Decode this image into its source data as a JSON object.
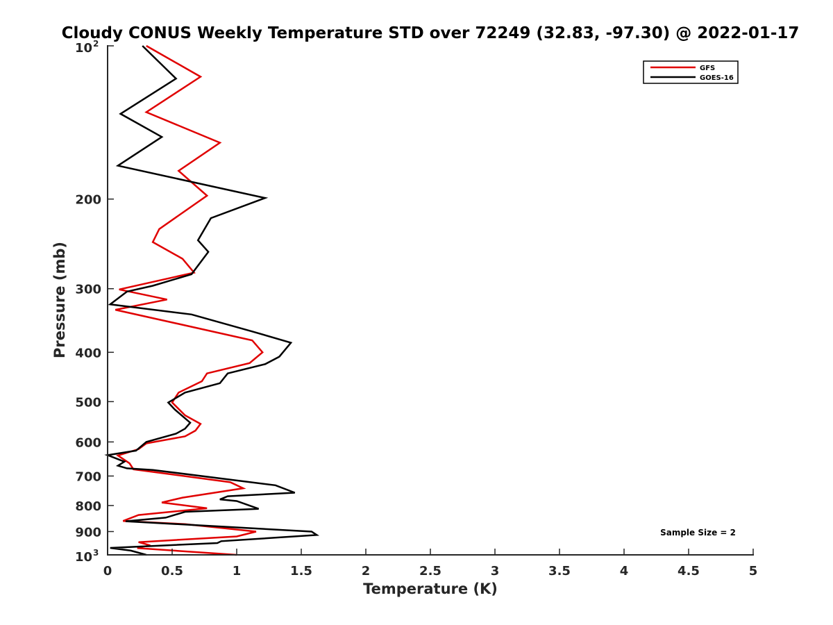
{
  "chart_data": {
    "type": "line",
    "title": "Cloudy CONUS Weekly Temperature STD over 72249 (32.83, -97.30) @ 2022-01-17",
    "xlabel": "Temperature (K)",
    "ylabel": "Pressure (mb)",
    "xlim": [
      0,
      5
    ],
    "ylim": [
      100,
      1000
    ],
    "y_scale": "log",
    "y_reversed": true,
    "x_ticks": [
      {
        "value": 0,
        "label": "0"
      },
      {
        "value": 0.5,
        "label": "0.5"
      },
      {
        "value": 1,
        "label": "1"
      },
      {
        "value": 1.5,
        "label": "1.5"
      },
      {
        "value": 2,
        "label": "2"
      },
      {
        "value": 2.5,
        "label": "2.5"
      },
      {
        "value": 3,
        "label": "3"
      },
      {
        "value": 3.5,
        "label": "3.5"
      },
      {
        "value": 4,
        "label": "4"
      },
      {
        "value": 4.5,
        "label": "4.5"
      },
      {
        "value": 5,
        "label": "5"
      }
    ],
    "y_ticks": [
      {
        "value": 100,
        "base": "10",
        "exp": "2"
      },
      {
        "value": 200,
        "label": "200"
      },
      {
        "value": 300,
        "label": "300"
      },
      {
        "value": 400,
        "label": "400"
      },
      {
        "value": 500,
        "label": "500"
      },
      {
        "value": 600,
        "label": "600"
      },
      {
        "value": 700,
        "label": "700"
      },
      {
        "value": 800,
        "label": "800"
      },
      {
        "value": 900,
        "label": "900"
      },
      {
        "value": 1000,
        "base": "10",
        "exp": "3"
      }
    ],
    "grid": false,
    "legend_position": "top-right",
    "annotation": "Sample Size = 2",
    "series": [
      {
        "name": "GFS",
        "color": "#e00000",
        "points": [
          [
            0.3,
            100
          ],
          [
            0.72,
            115
          ],
          [
            0.3,
            135
          ],
          [
            0.87,
            155
          ],
          [
            0.55,
            176
          ],
          [
            0.77,
            197
          ],
          [
            0.4,
            229
          ],
          [
            0.35,
            243
          ],
          [
            0.58,
            262
          ],
          [
            0.67,
            279
          ],
          [
            0.09,
            301
          ],
          [
            0.46,
            315
          ],
          [
            0.06,
            330
          ],
          [
            1.12,
            379
          ],
          [
            1.2,
            400
          ],
          [
            1.1,
            420
          ],
          [
            0.77,
            440
          ],
          [
            0.73,
            456
          ],
          [
            0.55,
            480
          ],
          [
            0.5,
            502
          ],
          [
            0.6,
            532
          ],
          [
            0.72,
            553
          ],
          [
            0.68,
            570
          ],
          [
            0.6,
            585
          ],
          [
            0.3,
            604
          ],
          [
            0.24,
            620
          ],
          [
            0.08,
            638
          ],
          [
            0.17,
            661
          ],
          [
            0.2,
            679
          ],
          [
            0.95,
            720
          ],
          [
            1.05,
            740
          ],
          [
            0.58,
            772
          ],
          [
            0.42,
            789
          ],
          [
            0.77,
            810
          ],
          [
            0.24,
            835
          ],
          [
            0.12,
            858
          ],
          [
            0.6,
            870
          ],
          [
            1.15,
            900
          ],
          [
            1.0,
            920
          ],
          [
            0.24,
            944
          ],
          [
            0.33,
            958
          ],
          [
            0.23,
            970
          ],
          [
            1.0,
            1000
          ]
        ]
      },
      {
        "name": "GOES-16",
        "color": "#000000",
        "points": [
          [
            0.27,
            100
          ],
          [
            0.53,
            116
          ],
          [
            0.1,
            136
          ],
          [
            0.42,
            151
          ],
          [
            0.08,
            172
          ],
          [
            1.22,
            199
          ],
          [
            0.8,
            218
          ],
          [
            0.7,
            241
          ],
          [
            0.78,
            254
          ],
          [
            0.65,
            281
          ],
          [
            0.35,
            296
          ],
          [
            0.15,
            304
          ],
          [
            0.02,
            322
          ],
          [
            0.65,
            337
          ],
          [
            1.12,
            364
          ],
          [
            1.42,
            383
          ],
          [
            1.33,
            408
          ],
          [
            1.22,
            422
          ],
          [
            0.93,
            440
          ],
          [
            0.87,
            460
          ],
          [
            0.6,
            480
          ],
          [
            0.47,
            502
          ],
          [
            0.52,
            518
          ],
          [
            0.64,
            550
          ],
          [
            0.6,
            565
          ],
          [
            0.53,
            578
          ],
          [
            0.3,
            600
          ],
          [
            0.22,
            624
          ],
          [
            0.0,
            637
          ],
          [
            0.13,
            656
          ],
          [
            0.08,
            668
          ],
          [
            0.15,
            676
          ],
          [
            0.35,
            681
          ],
          [
            1.3,
            730
          ],
          [
            1.45,
            755
          ],
          [
            0.93,
            767
          ],
          [
            0.87,
            778
          ],
          [
            1.0,
            784
          ],
          [
            1.17,
            812
          ],
          [
            0.6,
            823
          ],
          [
            0.45,
            845
          ],
          [
            0.14,
            859
          ],
          [
            1.58,
            900
          ],
          [
            1.62,
            914
          ],
          [
            0.88,
            940
          ],
          [
            0.85,
            948
          ],
          [
            0.02,
            969
          ],
          [
            0.18,
            981
          ],
          [
            0.3,
            1000
          ]
        ]
      }
    ]
  }
}
